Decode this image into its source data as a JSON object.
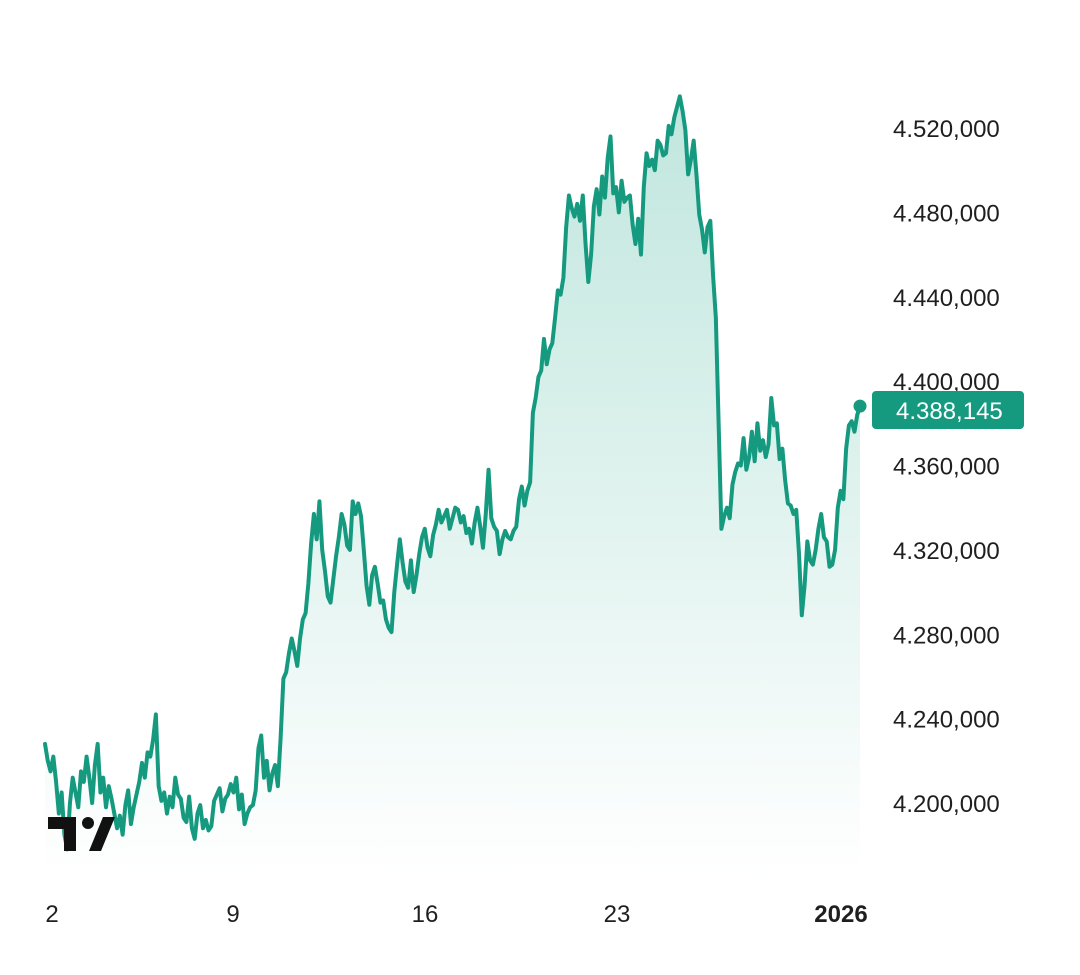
{
  "chart_data": {
    "type": "area",
    "x_ticks": [
      "2",
      "9",
      "16",
      "23",
      "2026"
    ],
    "y_ticks": [
      4200000,
      4240000,
      4280000,
      4320000,
      4360000,
      4400000,
      4440000,
      4480000,
      4520000
    ],
    "y_tick_labels": [
      "4.200,000",
      "4.240,000",
      "4.280,000",
      "4.320,000",
      "4.360,000",
      "4.400,000",
      "4.440,000",
      "4.480,000",
      "4.520,000"
    ],
    "ylim": [
      4170000,
      4550000
    ],
    "last_value": 4388145,
    "last_value_label": "4.388,145",
    "grid": false,
    "legend": "none",
    "series": [
      {
        "values": [
          4228000,
          4220000,
          4215000,
          4222000,
          4210000,
          4195000,
          4205000,
          4185000,
          4178000,
          4200000,
          4212000,
          4205000,
          4198000,
          4215000,
          4210000,
          4222000,
          4212000,
          4200000,
          4218000,
          4228000,
          4205000,
          4212000,
          4198000,
          4208000,
          4202000,
          4195000,
          4188000,
          4194000,
          4185000,
          4199000,
          4206000,
          4190000,
          4198000,
          4204000,
          4210000,
          4219000,
          4212000,
          4224000,
          4222000,
          4230000,
          4242000,
          4208000,
          4201000,
          4205000,
          4195000,
          4203000,
          4198000,
          4212000,
          4204000,
          4202000,
          4193000,
          4191000,
          4203000,
          4188000,
          4183000,
          4195000,
          4199000,
          4188000,
          4192000,
          4187000,
          4189000,
          4201000,
          4204000,
          4207000,
          4196000,
          4202000,
          4204000,
          4209000,
          4205000,
          4212000,
          4197000,
          4204000,
          4190000,
          4195000,
          4198000,
          4199000,
          4206000,
          4226000,
          4232000,
          4212000,
          4220000,
          4206000,
          4214000,
          4218000,
          4208000,
          4231000,
          4259000,
          4262000,
          4271000,
          4278000,
          4272000,
          4265000,
          4278000,
          4287000,
          4290000,
          4304000,
          4323000,
          4337000,
          4325000,
          4343000,
          4320000,
          4310000,
          4298000,
          4295000,
          4306000,
          4317000,
          4326000,
          4337000,
          4332000,
          4322000,
          4320000,
          4343000,
          4337000,
          4342000,
          4336000,
          4320000,
          4303000,
          4294000,
          4308000,
          4312000,
          4304000,
          4295000,
          4296000,
          4287000,
          4283000,
          4281000,
          4300000,
          4313000,
          4325000,
          4314000,
          4305000,
          4302000,
          4315000,
          4300000,
          4308000,
          4318000,
          4326000,
          4330000,
          4321000,
          4317000,
          4327000,
          4332000,
          4339000,
          4333000,
          4336000,
          4339000,
          4330000,
          4335000,
          4340000,
          4339000,
          4333000,
          4336000,
          4328000,
          4330000,
          4323000,
          4333000,
          4340000,
          4331000,
          4321000,
          4337000,
          4358000,
          4335000,
          4331000,
          4329000,
          4318000,
          4325000,
          4329000,
          4326000,
          4325000,
          4329000,
          4331000,
          4344000,
          4350000,
          4341000,
          4348000,
          4352000,
          4385000,
          4392000,
          4402000,
          4405000,
          4420000,
          4408000,
          4415000,
          4418000,
          4430000,
          4443000,
          4441000,
          4449000,
          4473000,
          4488000,
          4482000,
          4478000,
          4484000,
          4476000,
          4488000,
          4465000,
          4447000,
          4460000,
          4483000,
          4491000,
          4479000,
          4497000,
          4487000,
          4506000,
          4516000,
          4489000,
          4492000,
          4480000,
          4495000,
          4485000,
          4487000,
          4488000,
          4474000,
          4465000,
          4477000,
          4460000,
          4492000,
          4508000,
          4502000,
          4505000,
          4500000,
          4514000,
          4512000,
          4507000,
          4508000,
          4521000,
          4517000,
          4525000,
          4530000,
          4535000,
          4528000,
          4519000,
          4498000,
          4505000,
          4514000,
          4498000,
          4479000,
          4472000,
          4461000,
          4473000,
          4476000,
          4450000,
          4430000,
          4380000,
          4330000,
          4336000,
          4340000,
          4335000,
          4351000,
          4357000,
          4361000,
          4360000,
          4373000,
          4358000,
          4364000,
          4376000,
          4362000,
          4380000,
          4367000,
          4372000,
          4364000,
          4370000,
          4392000,
          4379000,
          4380000,
          4363000,
          4368000,
          4353000,
          4342000,
          4341000,
          4337000,
          4339000,
          4318000,
          4289000,
          4303000,
          4324000,
          4315000,
          4313000,
          4320000,
          4330000,
          4337000,
          4326000,
          4324000,
          4312000,
          4313000,
          4320000,
          4340000,
          4348000,
          4344000,
          4368000,
          4379000,
          4381000,
          4376000,
          4384000,
          4388145
        ]
      }
    ]
  },
  "colors": {
    "line": "#159a80",
    "fill_top": "#bde5dc",
    "fill_bottom": "#ffffff",
    "badge": "#159a80",
    "text": "#1f1f1f"
  },
  "icons": {
    "logo": "tradingview-logo-icon"
  }
}
